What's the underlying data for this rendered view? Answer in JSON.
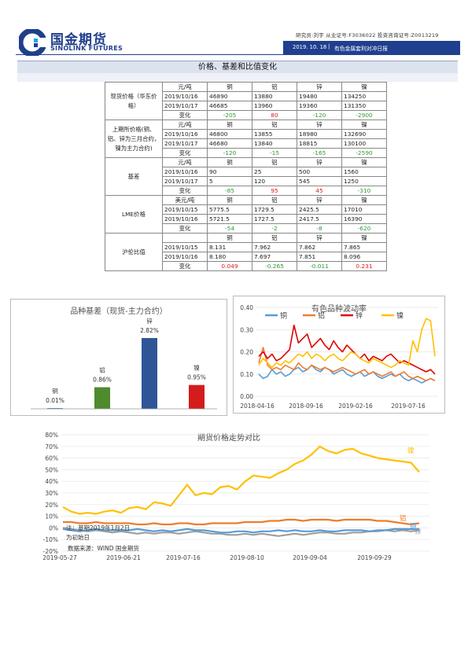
{
  "header": {
    "logo_cn": "国金期货",
    "logo_en": "SINOLINK FUTURES",
    "info": "研究员:刘宇 从业证号:F3036022 投资咨询证号:Z0013219",
    "date": "2019. 10. 18",
    "separator": "|",
    "report_name": "有色金属套利对冲日报",
    "colors": {
      "brand": "#203f8f"
    }
  },
  "section": {
    "title": "价格、基差和比值变化"
  },
  "table": {
    "groups": [
      {
        "label": "现货价格（华东价格）",
        "header": [
          "元/吨",
          "铜",
          "铝",
          "锌",
          "镍"
        ],
        "rows": [
          [
            "2019/10/16",
            "46890",
            "13880",
            "19480",
            "134250"
          ],
          [
            "2019/10/17",
            "46685",
            "13960",
            "19360",
            "131350"
          ]
        ],
        "change_label": "变化",
        "change": [
          "-205",
          "80",
          "-120",
          "-2900"
        ],
        "change_sign": [
          "neg",
          "pos",
          "neg",
          "neg"
        ]
      },
      {
        "label": "上期所价格(铜、铝、锌为三月合约，镍为主力合约)",
        "header": [
          "元/吨",
          "铜",
          "铝",
          "锌",
          "镍"
        ],
        "rows": [
          [
            "2019/10/16",
            "46800",
            "13855",
            "18980",
            "132690"
          ],
          [
            "2019/10/17",
            "46680",
            "13840",
            "18815",
            "130100"
          ]
        ],
        "change_label": "变化",
        "change": [
          "-120",
          "-15",
          "-165",
          "-2590"
        ],
        "change_sign": [
          "neg",
          "neg",
          "neg",
          "neg"
        ]
      },
      {
        "label": "基差",
        "header": [
          "元/吨",
          "铜",
          "铝",
          "锌",
          "镍"
        ],
        "rows": [
          [
            "2019/10/16",
            "90",
            "25",
            "500",
            "1560"
          ],
          [
            "2019/10/17",
            "5",
            "120",
            "545",
            "1250"
          ]
        ],
        "change_label": "变化",
        "change": [
          "-85",
          "95",
          "45",
          "-310"
        ],
        "change_sign": [
          "neg",
          "pos",
          "pos",
          "neg"
        ]
      },
      {
        "label": "LME价格",
        "header": [
          "美元/吨",
          "铜",
          "铝",
          "锌",
          "镍"
        ],
        "rows": [
          [
            "2019/10/15",
            "5775.5",
            "1729.5",
            "2425.5",
            "17010"
          ],
          [
            "2019/10/16",
            "5721.5",
            "1727.5",
            "2417.5",
            "16390"
          ]
        ],
        "change_label": "变化",
        "change": [
          "-54",
          "-2",
          "-8",
          "-620"
        ],
        "change_sign": [
          "neg",
          "neg",
          "neg",
          "neg"
        ]
      },
      {
        "label": "沪伦比值",
        "header": [
          "",
          "铜",
          "铝",
          "锌",
          "镍"
        ],
        "rows": [
          [
            "2019/10/15",
            "8.131",
            "7.962",
            "7.862",
            "7.865"
          ],
          [
            "2019/10/16",
            "8.180",
            "7.697",
            "7.851",
            "8.096"
          ]
        ],
        "change_label": "变化",
        "change": [
          "0.049",
          "-0.265",
          "-0.011",
          "0.231"
        ],
        "change_sign": [
          "pos",
          "neg",
          "neg",
          "pos"
        ]
      }
    ]
  },
  "chart_data": [
    {
      "type": "bar",
      "title": "品种基差（现货-主力合约）",
      "categories": [
        "铜",
        "铝",
        "锌",
        "镍"
      ],
      "values": [
        0.01,
        0.86,
        2.82,
        0.95
      ],
      "value_labels": [
        "0.01%",
        "0.86%",
        "2.82%",
        "0.95%"
      ],
      "colors": [
        "#4a7ec4",
        "#4f8a2e",
        "#2f5597",
        "#d41c1c"
      ],
      "ylim": [
        0,
        3.1
      ]
    },
    {
      "type": "line",
      "title": "有色品种波动率",
      "x_ticks": [
        "2018-04-16",
        "2018-09-16",
        "2019-02-16",
        "2019-07-16"
      ],
      "y_ticks": [
        "0.00",
        "0.10",
        "0.20",
        "0.30",
        "0.40"
      ],
      "ylim": [
        0,
        0.4
      ],
      "legend_position": "top",
      "series": [
        {
          "name": "铜",
          "color": "#5b9bd5",
          "values": [
            0.1,
            0.08,
            0.09,
            0.12,
            0.1,
            0.11,
            0.09,
            0.1,
            0.12,
            0.13,
            0.11,
            0.12,
            0.14,
            0.12,
            0.11,
            0.13,
            0.12,
            0.1,
            0.11,
            0.12,
            0.1,
            0.09,
            0.1,
            0.11,
            0.09,
            0.1,
            0.11,
            0.09,
            0.08,
            0.09,
            0.1,
            0.09,
            0.1,
            0.08,
            0.07,
            0.08,
            0.07,
            0.06,
            0.07,
            0.08,
            0.07
          ]
        },
        {
          "name": "铝",
          "color": "#ed7d31",
          "values": [
            0.15,
            0.22,
            0.14,
            0.12,
            0.13,
            0.12,
            0.14,
            0.13,
            0.12,
            0.15,
            0.13,
            0.12,
            0.14,
            0.13,
            0.12,
            0.13,
            0.12,
            0.11,
            0.12,
            0.13,
            0.12,
            0.11,
            0.1,
            0.11,
            0.12,
            0.1,
            0.11,
            0.1,
            0.09,
            0.1,
            0.11,
            0.09,
            0.1,
            0.11,
            0.09,
            0.08,
            0.09,
            0.08,
            0.07,
            0.08,
            0.07
          ]
        },
        {
          "name": "锌",
          "color": "#e00000",
          "values": [
            0.18,
            0.2,
            0.17,
            0.19,
            0.16,
            0.17,
            0.19,
            0.21,
            0.32,
            0.24,
            0.26,
            0.28,
            0.22,
            0.24,
            0.26,
            0.23,
            0.21,
            0.25,
            0.22,
            0.2,
            0.23,
            0.21,
            0.19,
            0.17,
            0.19,
            0.16,
            0.18,
            0.17,
            0.16,
            0.18,
            0.19,
            0.17,
            0.15,
            0.16,
            0.15,
            0.14,
            0.13,
            0.12,
            0.11,
            0.12,
            0.1
          ]
        },
        {
          "name": "镍",
          "color": "#ffc000",
          "values": [
            0.14,
            0.17,
            0.15,
            0.13,
            0.15,
            0.14,
            0.16,
            0.15,
            0.17,
            0.19,
            0.18,
            0.2,
            0.17,
            0.19,
            0.18,
            0.16,
            0.18,
            0.19,
            0.17,
            0.16,
            0.18,
            0.2,
            0.19,
            0.17,
            0.16,
            0.15,
            0.17,
            0.16,
            0.15,
            0.14,
            0.13,
            0.14,
            0.16,
            0.15,
            0.14,
            0.25,
            0.2,
            0.3,
            0.35,
            0.34,
            0.18
          ]
        }
      ]
    },
    {
      "type": "line",
      "title": "期货价格走势对比",
      "x_ticks": [
        "2019-05-27",
        "2019-06-21",
        "2019-07-16",
        "2019-08-10",
        "2019-09-04",
        "2019-09-29"
      ],
      "y_ticks": [
        "80%",
        "70%",
        "60%",
        "50%",
        "40%",
        "30%",
        "20%",
        "10%",
        "0%",
        "-10%",
        "-20%"
      ],
      "ylim": [
        -20,
        80
      ],
      "annotation_lines": [
        "注：基期2019年1月2日",
        "为初始日"
      ],
      "source": "数据来源：WIND 国金期货",
      "series": [
        {
          "name": "镍",
          "color": "#ffc000",
          "values": [
            18,
            14,
            12,
            13,
            12,
            14,
            15,
            13,
            17,
            18,
            16,
            22,
            21,
            19,
            28,
            37,
            28,
            30,
            29,
            35,
            36,
            33,
            40,
            45,
            44,
            43,
            47,
            50,
            55,
            58,
            63,
            70,
            66,
            64,
            67,
            68,
            64,
            62,
            60,
            59,
            58,
            57,
            56,
            48
          ]
        },
        {
          "name": "铝",
          "color": "#ed7d31",
          "values": [
            5,
            5,
            4,
            4,
            5,
            4,
            4,
            4,
            4,
            3,
            3,
            4,
            3,
            3,
            4,
            4,
            3,
            3,
            4,
            4,
            4,
            4,
            5,
            5,
            5,
            6,
            6,
            7,
            7,
            6,
            7,
            7,
            7,
            6,
            7,
            7,
            7,
            7,
            6,
            6,
            5,
            4,
            3,
            4
          ]
        },
        {
          "name": "锌",
          "color": "#9e9e9e",
          "values": [
            0,
            -1,
            -2,
            -3,
            -2,
            -3,
            -4,
            -3,
            -4,
            -5,
            -4,
            -5,
            -4,
            -4,
            -5,
            -4,
            -3,
            -4,
            -5,
            -5,
            -6,
            -6,
            -5,
            -6,
            -5,
            -6,
            -7,
            -6,
            -5,
            -6,
            -5,
            -4,
            -4,
            -5,
            -5,
            -4,
            -4,
            -3,
            -3,
            -2,
            -3,
            -2,
            -3,
            -2
          ]
        },
        {
          "name": "铜",
          "color": "#5b9bd5",
          "values": [
            -1,
            -2,
            -3,
            -2,
            -1,
            -2,
            -2,
            -2,
            -2,
            -1,
            -2,
            -3,
            -2,
            -3,
            -2,
            -1,
            -2,
            -2,
            -3,
            -4,
            -4,
            -3,
            -3,
            -4,
            -3,
            -3,
            -2,
            -3,
            -2,
            -3,
            -3,
            -2,
            -3,
            -3,
            -2,
            -2,
            -2,
            -3,
            -2,
            -2,
            -1,
            -1,
            -1,
            -1
          ]
        }
      ]
    }
  ]
}
